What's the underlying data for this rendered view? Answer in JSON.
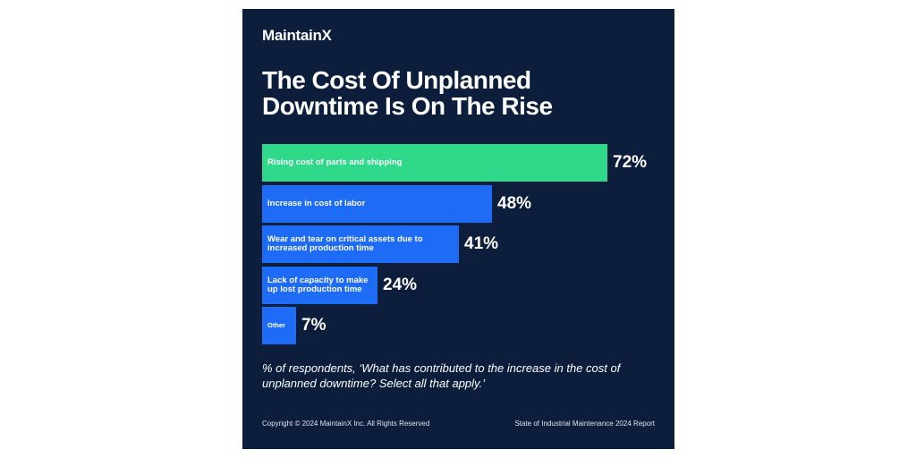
{
  "brand": {
    "name": "MaintainX"
  },
  "title_lines": [
    "The Cost Of Unplanned",
    "Downtime Is On The Rise"
  ],
  "footnote": "% of respondents, ‘What has contributed to the increase in the cost of unplanned downtime? Select all that apply.’",
  "footer": {
    "copyright": "Copyright © 2024 MaintainX Inc. All Rights Reserved",
    "report": "State of Industrial Maintenance 2024 Report"
  },
  "colors": {
    "background": "#0d1e3d",
    "highlight": "#2ed98a",
    "bar": "#1e6bf5",
    "text": "#ffffff"
  },
  "chart_data": {
    "type": "bar",
    "orientation": "horizontal",
    "title": "The Cost Of Unplanned Downtime Is On The Rise",
    "categories": [
      "Rising cost of parts and shipping",
      "Increase in cost of labor",
      "Wear and tear on critical assets due to increased production time",
      "Lack of capacity to make up lost production time",
      "Other"
    ],
    "values": [
      72,
      48,
      41,
      24,
      7
    ],
    "value_labels": [
      "72%",
      "48%",
      "41%",
      "24%",
      "7%"
    ],
    "highlight_index": 0,
    "xlim": [
      0,
      100
    ],
    "xlabel": "",
    "ylabel": ""
  }
}
